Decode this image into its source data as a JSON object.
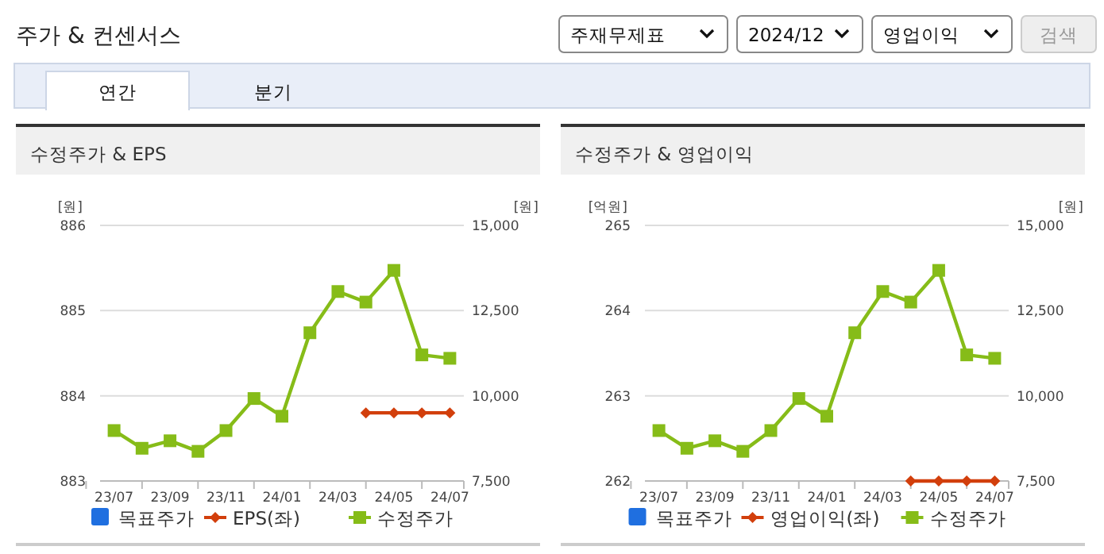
{
  "chart_data": [
    {
      "type": "other",
      "title": "주가 & 컨센서스",
      "annotations": [
        "주재무제표",
        "2024/12",
        "영업이익",
        "검색",
        "연간",
        "분기"
      ]
    },
    {
      "type": "line",
      "title": "수정주가 & EPS",
      "ylabel": "[원]",
      "y2label": "[원]",
      "categories": [
        "23/07",
        null,
        "23/09",
        null,
        "23/11",
        null,
        "24/01",
        null,
        "24/03",
        null,
        "24/05",
        null,
        "24/07"
      ],
      "series": [
        {
          "name": "목표주가",
          "type": "bar",
          "color": "#1f6fe0",
          "values": [
            null,
            null,
            null,
            null,
            null,
            null,
            null,
            null,
            null,
            null,
            null,
            null,
            null
          ]
        },
        {
          "name": "EPS(좌)",
          "color": "#d23f0c",
          "marker": "diamond",
          "values": [
            null,
            null,
            null,
            null,
            null,
            null,
            null,
            null,
            null,
            883.8,
            883.8,
            883.8,
            883.8
          ]
        },
        {
          "name": "수정주가",
          "color": "#86bc18",
          "marker": "square",
          "axis": "y2",
          "values": [
            8980,
            8460,
            8680,
            8370,
            8980,
            9920,
            9400,
            11850,
            13060,
            12750,
            13680,
            11200,
            11100
          ]
        }
      ],
      "ylim": [
        883,
        886
      ],
      "yticks": [
        883,
        884,
        885,
        886
      ],
      "y2lim": [
        7500,
        15000
      ],
      "y2ticks": [
        {
          "value": 7500,
          "label": "7,500"
        },
        {
          "value": 10000,
          "label": "10,000"
        },
        {
          "value": 12500,
          "label": "12,500"
        },
        {
          "value": 15000,
          "label": "15,000"
        }
      ],
      "grid": "y",
      "legend": "bottom"
    },
    {
      "type": "line",
      "title": "수정주가 & 영업이익",
      "ylabel": "[억원]",
      "y2label": "[원]",
      "categories": [
        "23/07",
        null,
        "23/09",
        null,
        "23/11",
        null,
        "24/01",
        null,
        "24/03",
        null,
        "24/05",
        null,
        "24/07"
      ],
      "series": [
        {
          "name": "목표주가",
          "type": "bar",
          "color": "#1f6fe0",
          "values": [
            null,
            null,
            null,
            null,
            null,
            null,
            null,
            null,
            null,
            null,
            null,
            null,
            null
          ]
        },
        {
          "name": "영업이익(좌)",
          "color": "#d23f0c",
          "marker": "diamond",
          "values": [
            null,
            null,
            null,
            null,
            null,
            null,
            null,
            null,
            null,
            262,
            262,
            262,
            262
          ]
        },
        {
          "name": "수정주가",
          "color": "#86bc18",
          "marker": "square",
          "axis": "y2",
          "values": [
            8980,
            8460,
            8680,
            8370,
            8980,
            9920,
            9400,
            11850,
            13060,
            12750,
            13680,
            11200,
            11100
          ]
        }
      ],
      "ylim": [
        262,
        265
      ],
      "yticks": [
        262,
        263,
        264,
        265
      ],
      "y2lim": [
        7500,
        15000
      ],
      "y2ticks": [
        {
          "value": 7500,
          "label": "7,500"
        },
        {
          "value": 10000,
          "label": "10,000"
        },
        {
          "value": 12500,
          "label": "12,500"
        },
        {
          "value": 15000,
          "label": "15,000"
        }
      ],
      "grid": "y",
      "legend": "bottom"
    }
  ]
}
